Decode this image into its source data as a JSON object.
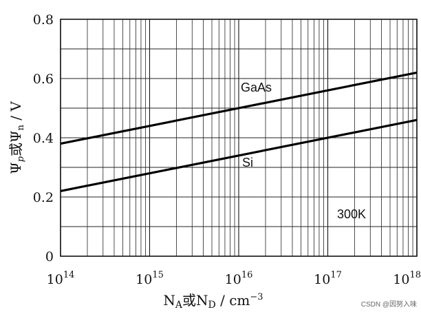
{
  "chart_data": {
    "type": "line",
    "x_scale": "log",
    "x_ticks": [
      {
        "value": 100000000000000.0,
        "base": "10",
        "exp": "14"
      },
      {
        "value": 1000000000000000.0,
        "base": "10",
        "exp": "15"
      },
      {
        "value": 1e+16,
        "base": "10",
        "exp": "16"
      },
      {
        "value": 1e+17,
        "base": "10",
        "exp": "17"
      },
      {
        "value": 1e+18,
        "base": "10",
        "exp": "18"
      }
    ],
    "xlim": [
      100000000000000.0,
      1e+18
    ],
    "y_ticks": [
      "0",
      "0.2",
      "0.4",
      "0.6",
      "0.8"
    ],
    "ylim": [
      0,
      0.8
    ],
    "grid": true,
    "xlabel": {
      "n": "N",
      "a": "A",
      "or": "或",
      "n2": "N",
      "d": "D",
      "unit": " / cm",
      "exp": "−3"
    },
    "ylabel": {
      "psi": "Ψ",
      "p": "p",
      "or": "或",
      "psi2": "Ψ",
      "n": "n",
      "unit": " / V"
    },
    "series": [
      {
        "name": "GaAs",
        "x": [
          100000000000000.0,
          1e+18
        ],
        "values": [
          0.38,
          0.62
        ]
      },
      {
        "name": "Si",
        "x": [
          100000000000000.0,
          1e+18
        ],
        "values": [
          0.22,
          0.46
        ]
      }
    ],
    "annotations": [
      {
        "text": "300K"
      }
    ]
  },
  "watermark": "CSDN @因努入味"
}
